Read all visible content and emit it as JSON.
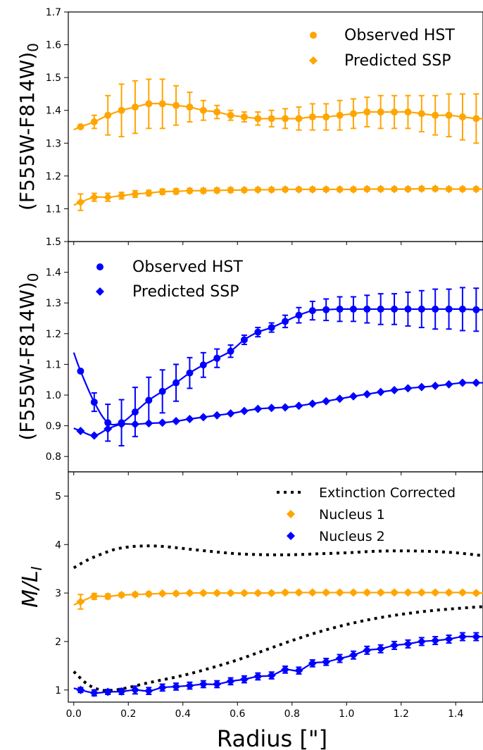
{
  "chart_data": [
    {
      "type": "scatter",
      "ylabel": "(F555W-F814W)",
      "ylabel_sub": "0",
      "ylim": [
        1.0,
        1.7
      ],
      "yticks": [
        1.1,
        1.2,
        1.3,
        1.4,
        1.5,
        1.6,
        1.7
      ],
      "xlim": [
        -0.02,
        1.5
      ],
      "legend_position": "top-right",
      "series": [
        {
          "name": "Observed HST",
          "marker": "circle",
          "color": "#ffa500",
          "x": [
            0.025,
            0.075,
            0.125,
            0.175,
            0.225,
            0.275,
            0.325,
            0.375,
            0.425,
            0.475,
            0.525,
            0.575,
            0.625,
            0.675,
            0.725,
            0.775,
            0.825,
            0.875,
            0.925,
            0.975,
            1.025,
            1.075,
            1.125,
            1.175,
            1.225,
            1.275,
            1.325,
            1.375,
            1.425,
            1.475
          ],
          "y": [
            1.35,
            1.365,
            1.385,
            1.4,
            1.41,
            1.42,
            1.42,
            1.415,
            1.41,
            1.4,
            1.395,
            1.385,
            1.38,
            1.375,
            1.375,
            1.375,
            1.375,
            1.38,
            1.38,
            1.385,
            1.39,
            1.395,
            1.395,
            1.395,
            1.395,
            1.39,
            1.385,
            1.385,
            1.38,
            1.375
          ],
          "yerr": [
            0.005,
            0.02,
            0.06,
            0.08,
            0.08,
            0.075,
            0.075,
            0.06,
            0.045,
            0.03,
            0.02,
            0.015,
            0.015,
            0.02,
            0.025,
            0.03,
            0.035,
            0.04,
            0.04,
            0.045,
            0.045,
            0.045,
            0.05,
            0.05,
            0.05,
            0.055,
            0.06,
            0.065,
            0.07,
            0.075
          ]
        },
        {
          "name": "Predicted SSP",
          "marker": "diamond",
          "color": "#ffa500",
          "x": [
            0.025,
            0.075,
            0.125,
            0.175,
            0.225,
            0.275,
            0.325,
            0.375,
            0.425,
            0.475,
            0.525,
            0.575,
            0.625,
            0.675,
            0.725,
            0.775,
            0.825,
            0.875,
            0.925,
            0.975,
            1.025,
            1.075,
            1.125,
            1.175,
            1.225,
            1.275,
            1.325,
            1.375,
            1.425,
            1.475
          ],
          "y": [
            1.12,
            1.135,
            1.135,
            1.14,
            1.145,
            1.148,
            1.152,
            1.153,
            1.155,
            1.155,
            1.156,
            1.157,
            1.157,
            1.158,
            1.158,
            1.159,
            1.159,
            1.159,
            1.159,
            1.159,
            1.159,
            1.16,
            1.16,
            1.16,
            1.16,
            1.161,
            1.161,
            1.16,
            1.16,
            1.16
          ],
          "yerr": [
            0.025,
            0.012,
            0.012,
            0.01,
            0.01,
            0.008,
            0.008,
            0.008,
            0.007,
            0.007,
            0.007,
            0.007,
            0.006,
            0.006,
            0.006,
            0.006,
            0.006,
            0.006,
            0.006,
            0.006,
            0.006,
            0.006,
            0.006,
            0.006,
            0.006,
            0.006,
            0.006,
            0.006,
            0.006,
            0.006
          ]
        }
      ]
    },
    {
      "type": "scatter",
      "ylabel": "(F555W-F814W)",
      "ylabel_sub": "0",
      "ylim": [
        0.75,
        1.5
      ],
      "yticks": [
        0.8,
        0.9,
        1.0,
        1.1,
        1.2,
        1.3,
        1.4,
        1.5
      ],
      "xlim": [
        -0.02,
        1.5
      ],
      "legend_position": "top-left",
      "series": [
        {
          "name": "Observed HST",
          "marker": "circle",
          "color": "#0000ff",
          "x": [
            0.025,
            0.075,
            0.125,
            0.175,
            0.225,
            0.275,
            0.325,
            0.375,
            0.425,
            0.475,
            0.525,
            0.575,
            0.625,
            0.675,
            0.725,
            0.775,
            0.825,
            0.875,
            0.925,
            0.975,
            1.025,
            1.075,
            1.125,
            1.175,
            1.225,
            1.275,
            1.325,
            1.375,
            1.425,
            1.475
          ],
          "y": [
            1.078,
            0.977,
            0.91,
            0.91,
            0.945,
            0.983,
            1.012,
            1.04,
            1.072,
            1.098,
            1.12,
            1.143,
            1.18,
            1.205,
            1.22,
            1.24,
            1.26,
            1.275,
            1.278,
            1.28,
            1.28,
            1.28,
            1.28,
            1.28,
            1.28,
            1.28,
            1.28,
            1.28,
            1.28,
            1.278
          ],
          "yerr": [
            0.005,
            0.03,
            0.06,
            0.075,
            0.08,
            0.075,
            0.07,
            0.06,
            0.05,
            0.04,
            0.03,
            0.02,
            0.015,
            0.015,
            0.015,
            0.02,
            0.025,
            0.03,
            0.035,
            0.04,
            0.04,
            0.045,
            0.05,
            0.05,
            0.055,
            0.06,
            0.065,
            0.065,
            0.07,
            0.07
          ]
        },
        {
          "name": "Predicted SSP",
          "marker": "diamond",
          "color": "#0000ff",
          "x": [
            0.025,
            0.075,
            0.125,
            0.175,
            0.225,
            0.275,
            0.325,
            0.375,
            0.425,
            0.475,
            0.525,
            0.575,
            0.625,
            0.675,
            0.725,
            0.775,
            0.825,
            0.875,
            0.925,
            0.975,
            1.025,
            1.075,
            1.125,
            1.175,
            1.225,
            1.275,
            1.325,
            1.375,
            1.425,
            1.475
          ],
          "y": [
            0.883,
            0.868,
            0.89,
            0.905,
            0.905,
            0.908,
            0.91,
            0.915,
            0.922,
            0.928,
            0.934,
            0.94,
            0.948,
            0.955,
            0.958,
            0.96,
            0.965,
            0.972,
            0.98,
            0.988,
            0.996,
            1.003,
            1.01,
            1.016,
            1.022,
            1.026,
            1.03,
            1.035,
            1.04,
            1.04
          ]
        }
      ]
    },
    {
      "type": "line",
      "ylabel": "M/L",
      "ylabel_sub": "I",
      "xlabel": "Radius [\"]",
      "ylim": [
        0.75,
        5.5
      ],
      "yticks": [
        1,
        2,
        3,
        4,
        5
      ],
      "xlim": [
        -0.02,
        1.5
      ],
      "xticks": [
        0.0,
        0.2,
        0.4,
        0.6,
        0.8,
        1.0,
        1.2,
        1.4
      ],
      "legend_position": "top-right",
      "series": [
        {
          "name": "Extinction Corrected",
          "style": "dotted",
          "color": "#000000",
          "x": [
            0.0,
            0.05,
            0.1,
            0.15,
            0.2,
            0.25,
            0.3,
            0.35,
            0.4,
            0.5,
            0.6,
            0.7,
            0.8,
            0.9,
            1.0,
            1.1,
            1.2,
            1.3,
            1.4,
            1.5
          ],
          "y": [
            3.52,
            3.68,
            3.8,
            3.9,
            3.95,
            3.97,
            3.97,
            3.95,
            3.92,
            3.86,
            3.81,
            3.79,
            3.79,
            3.81,
            3.83,
            3.86,
            3.87,
            3.86,
            3.83,
            3.77
          ]
        },
        {
          "name": "",
          "style": "dotted",
          "color": "#000000",
          "x": [
            0.0,
            0.05,
            0.1,
            0.15,
            0.2,
            0.25,
            0.3,
            0.4,
            0.5,
            0.6,
            0.7,
            0.8,
            0.9,
            1.0,
            1.1,
            1.2,
            1.3,
            1.4,
            1.5
          ],
          "y": [
            1.38,
            1.12,
            1.0,
            1.0,
            1.05,
            1.12,
            1.18,
            1.3,
            1.45,
            1.62,
            1.82,
            2.02,
            2.2,
            2.35,
            2.47,
            2.56,
            2.63,
            2.68,
            2.72
          ]
        },
        {
          "name": "Nucleus 1",
          "marker": "diamond",
          "color": "#ffa500",
          "x": [
            0.025,
            0.075,
            0.125,
            0.175,
            0.225,
            0.275,
            0.325,
            0.375,
            0.425,
            0.475,
            0.525,
            0.575,
            0.625,
            0.675,
            0.725,
            0.775,
            0.825,
            0.875,
            0.925,
            0.975,
            1.025,
            1.075,
            1.125,
            1.175,
            1.225,
            1.275,
            1.325,
            1.375,
            1.425,
            1.475
          ],
          "y": [
            2.82,
            2.93,
            2.93,
            2.96,
            2.97,
            2.98,
            2.99,
            2.99,
            3.0,
            3.0,
            3.0,
            3.0,
            3.0,
            3.0,
            3.0,
            3.01,
            3.01,
            3.01,
            3.01,
            3.01,
            3.01,
            3.01,
            3.01,
            3.01,
            3.01,
            3.01,
            3.01,
            3.01,
            3.01,
            3.0
          ],
          "yerr": [
            0.15,
            0.06,
            0.05,
            0.04,
            0.04,
            0.04,
            0.03,
            0.03,
            0.03,
            0.03,
            0.03,
            0.03,
            0.03,
            0.03,
            0.03,
            0.03,
            0.03,
            0.03,
            0.03,
            0.03,
            0.03,
            0.03,
            0.03,
            0.03,
            0.03,
            0.03,
            0.03,
            0.03,
            0.03,
            0.03
          ]
        },
        {
          "name": "Nucleus 2",
          "marker": "diamond",
          "color": "#0000ff",
          "x": [
            0.025,
            0.075,
            0.125,
            0.175,
            0.225,
            0.275,
            0.325,
            0.375,
            0.425,
            0.475,
            0.525,
            0.575,
            0.625,
            0.675,
            0.725,
            0.775,
            0.825,
            0.875,
            0.925,
            0.975,
            1.025,
            1.075,
            1.125,
            1.175,
            1.225,
            1.275,
            1.325,
            1.375,
            1.425,
            1.475
          ],
          "y": [
            1.0,
            0.94,
            0.96,
            0.97,
            1.0,
            0.98,
            1.05,
            1.07,
            1.09,
            1.12,
            1.12,
            1.18,
            1.22,
            1.28,
            1.3,
            1.42,
            1.4,
            1.55,
            1.58,
            1.65,
            1.72,
            1.82,
            1.85,
            1.92,
            1.95,
            2.0,
            2.02,
            2.05,
            2.1,
            2.1
          ],
          "yerr": [
            0.05,
            0.06,
            0.05,
            0.06,
            0.08,
            0.07,
            0.07,
            0.07,
            0.07,
            0.07,
            0.07,
            0.07,
            0.07,
            0.07,
            0.07,
            0.07,
            0.07,
            0.07,
            0.07,
            0.08,
            0.08,
            0.08,
            0.08,
            0.08,
            0.08,
            0.08,
            0.08,
            0.08,
            0.08,
            0.08
          ]
        }
      ]
    }
  ]
}
